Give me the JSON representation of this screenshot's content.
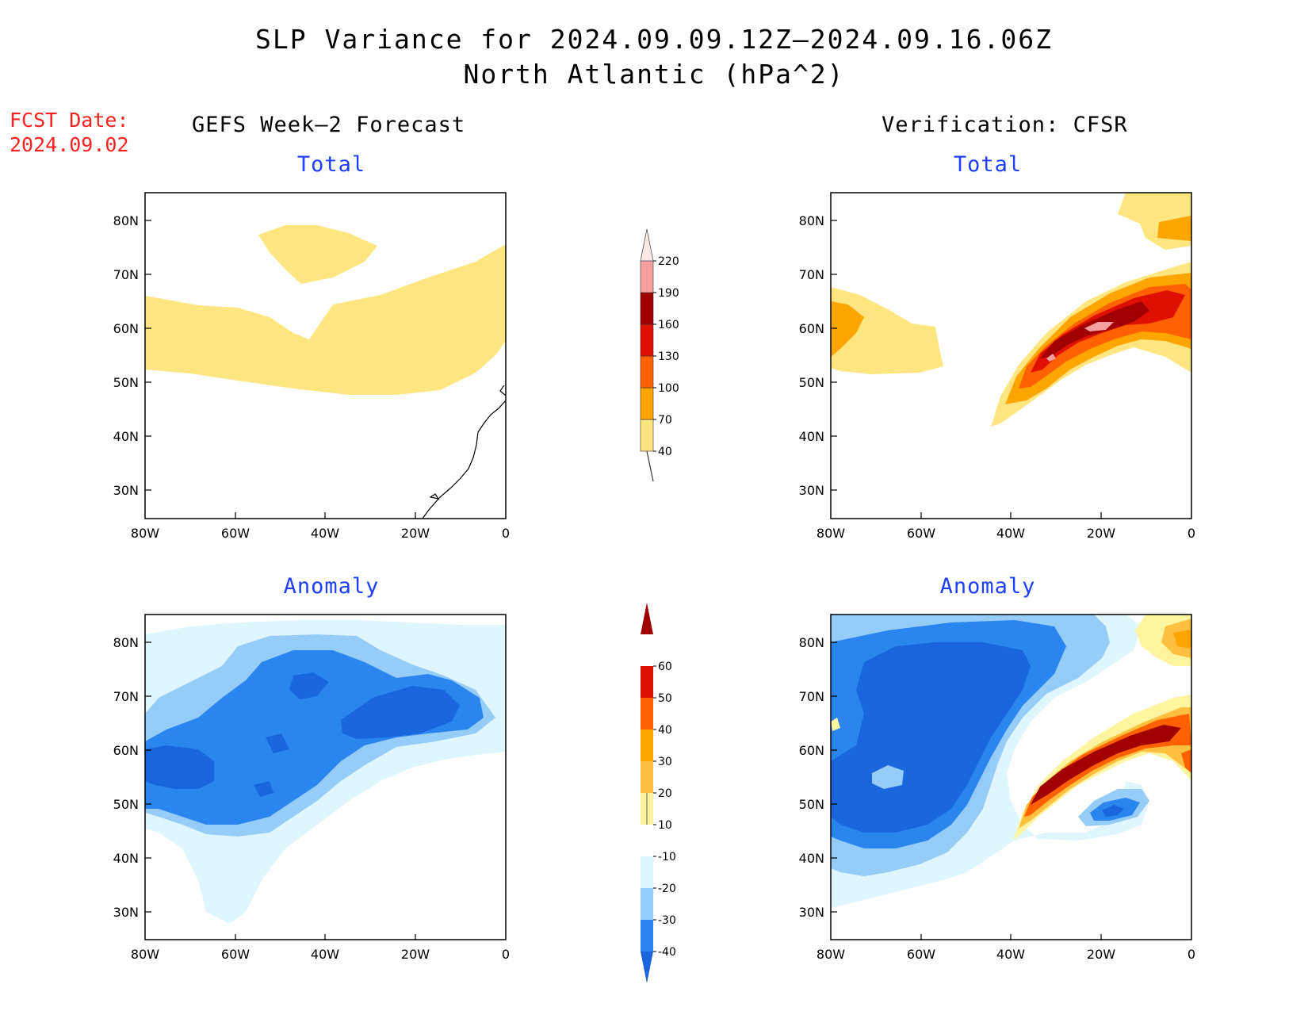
{
  "title_line1": "SLP Variance for 2024.09.09.12Z–2024.09.16.06Z",
  "title_line2": "North Atlantic (hPa^2)",
  "fcst_date_label": "FCST Date:",
  "fcst_date_value": "2024.09.02",
  "left_column_title": "GEFS Week–2 Forecast",
  "right_column_title": "Verification: CFSR",
  "panels": {
    "forecast_total": {
      "title": "Total"
    },
    "verification_total": {
      "title": "Total"
    },
    "forecast_anomaly": {
      "title": "Anomaly"
    },
    "verification_anomaly": {
      "title": "Anomaly"
    }
  },
  "axes": {
    "lon_labels": [
      "80W",
      "60W",
      "40W",
      "20W",
      "0"
    ],
    "lat_labels": [
      "80N",
      "70N",
      "60N",
      "50N",
      "40N",
      "30N"
    ]
  },
  "colorbar_total": {
    "labels": [
      "40",
      "70",
      "100",
      "130",
      "160",
      "190",
      "220"
    ],
    "colors": [
      "#ffe680",
      "#ffa500",
      "#ff6000",
      "#e01000",
      "#a00000",
      "#f4a0a0",
      "#ffe8e8"
    ]
  },
  "colorbar_anomaly": {
    "labels": [
      "-40",
      "-30",
      "-20",
      "-10",
      "10",
      "20",
      "30",
      "40",
      "50",
      "60"
    ],
    "colors": [
      "#1a66dd",
      "#2a86ee",
      "#96cdf8",
      "#e0f6ff",
      "#ffffff",
      "#fff5a0",
      "#ffc040",
      "#ffa500",
      "#ff6000",
      "#e01000",
      "#a00000"
    ]
  }
}
